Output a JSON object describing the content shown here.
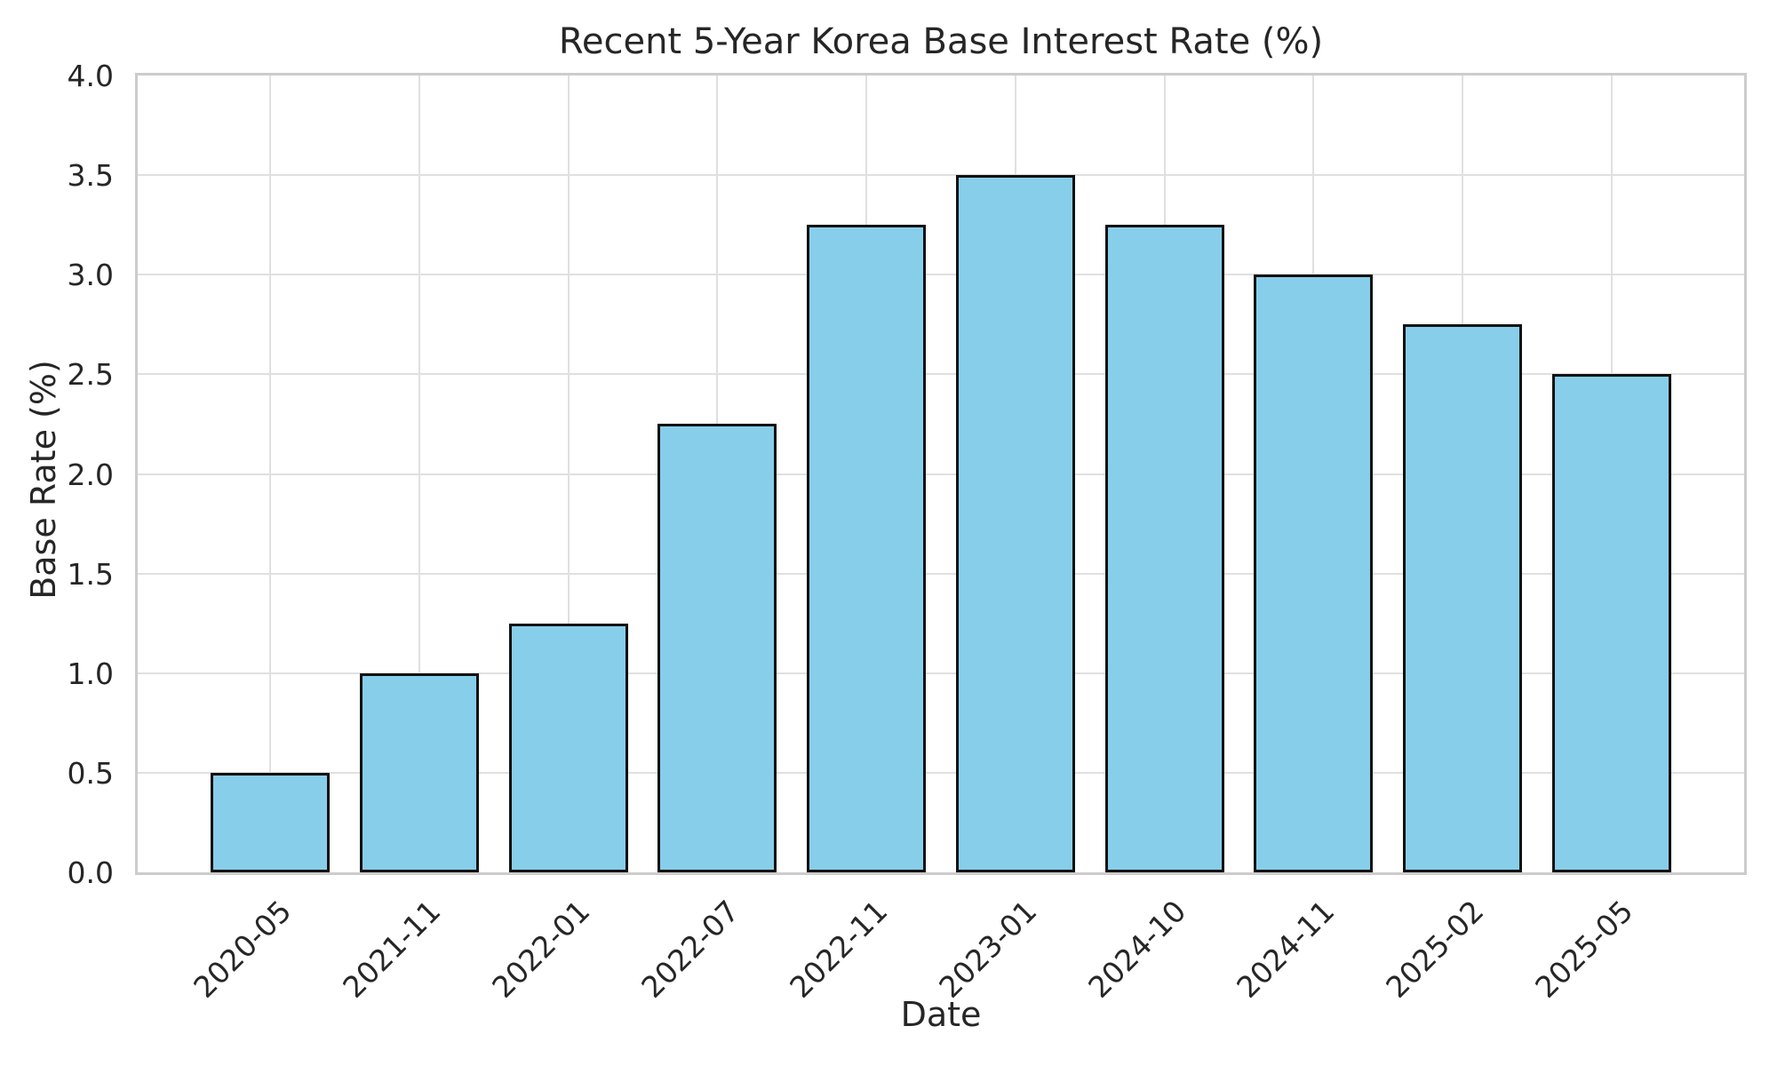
{
  "chart_data": {
    "type": "bar",
    "title": "Recent 5-Year Korea Base Interest Rate (%)",
    "xlabel": "Date",
    "ylabel": "Base Rate (%)",
    "categories": [
      "2020-05",
      "2021-11",
      "2022-01",
      "2022-07",
      "2022-11",
      "2023-01",
      "2024-10",
      "2024-11",
      "2025-02",
      "2025-05"
    ],
    "values": [
      0.5,
      1.0,
      1.25,
      2.25,
      3.25,
      3.5,
      3.25,
      3.0,
      2.75,
      2.5
    ],
    "ylim": [
      0.0,
      4.0
    ],
    "yticks": [
      "0.0",
      "0.5",
      "1.0",
      "1.5",
      "2.0",
      "2.5",
      "3.0",
      "3.5",
      "4.0"
    ],
    "grid": true,
    "legend": null,
    "colors": {
      "bar_fill": "#87CEEB",
      "bar_edge": "#111111",
      "grid_line": "#e0e0e0",
      "spine": "#cccccc",
      "text": "#262626",
      "background": "#ffffff"
    }
  }
}
